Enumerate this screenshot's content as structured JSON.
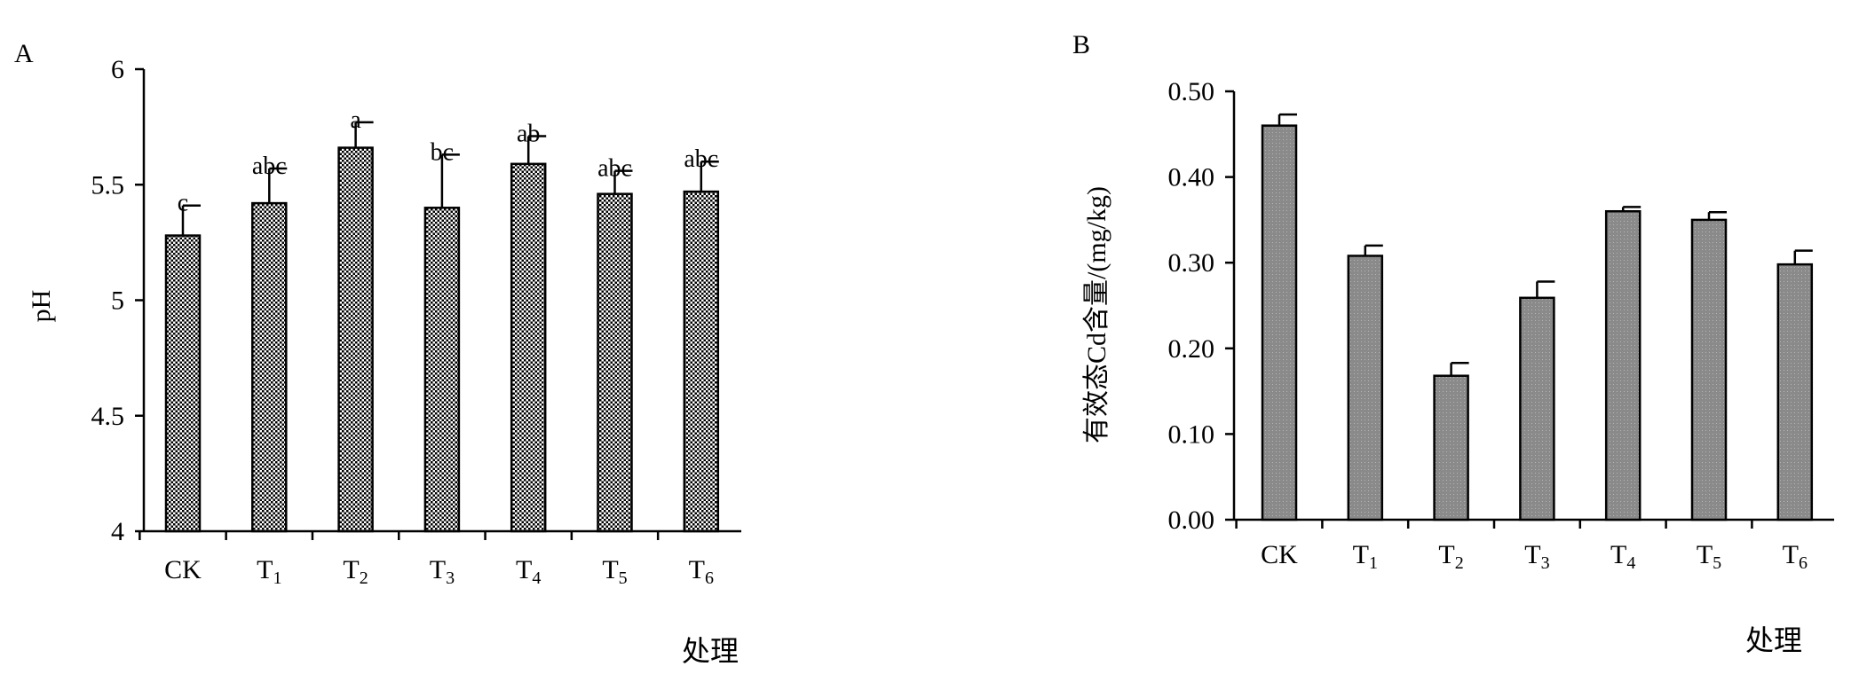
{
  "chart_data": [
    {
      "panel_label": "A",
      "type": "bar",
      "categories": [
        "CK",
        "T1",
        "T2",
        "T3",
        "T4",
        "T5",
        "T6"
      ],
      "category_labels": [
        {
          "base": "CK",
          "sub": ""
        },
        {
          "base": "T",
          "sub": "1"
        },
        {
          "base": "T",
          "sub": "2"
        },
        {
          "base": "T",
          "sub": "3"
        },
        {
          "base": "T",
          "sub": "4"
        },
        {
          "base": "T",
          "sub": "5"
        },
        {
          "base": "T",
          "sub": "6"
        }
      ],
      "values": [
        5.28,
        5.42,
        5.66,
        5.4,
        5.59,
        5.46,
        5.47
      ],
      "errors": [
        0.13,
        0.15,
        0.11,
        0.23,
        0.12,
        0.1,
        0.13
      ],
      "letters": [
        "c",
        "abc",
        "a",
        "bc",
        "ab",
        "abc",
        "abc"
      ],
      "xlabel": "处理",
      "ylabel": "pH",
      "ylim": [
        4,
        6
      ],
      "yticks": [
        4,
        4.5,
        5,
        5.5,
        6
      ],
      "ytick_labels": [
        "4",
        "4.5",
        "5",
        "5.5",
        "6"
      ],
      "bar_fill": "crosshatch",
      "grid": false
    },
    {
      "panel_label": "B",
      "type": "bar",
      "categories": [
        "CK",
        "T1",
        "T2",
        "T3",
        "T4",
        "T5",
        "T6"
      ],
      "category_labels": [
        {
          "base": "CK",
          "sub": ""
        },
        {
          "base": "T",
          "sub": "1"
        },
        {
          "base": "T",
          "sub": "2"
        },
        {
          "base": "T",
          "sub": "3"
        },
        {
          "base": "T",
          "sub": "4"
        },
        {
          "base": "T",
          "sub": "5"
        },
        {
          "base": "T",
          "sub": "6"
        }
      ],
      "values": [
        0.46,
        0.308,
        0.168,
        0.259,
        0.36,
        0.35,
        0.298
      ],
      "errors": [
        0.013,
        0.012,
        0.015,
        0.019,
        0.005,
        0.009,
        0.016
      ],
      "xlabel": "处理",
      "ylabel": "有效态Cd含量/(mg/kg)",
      "ylim": [
        0,
        0.5
      ],
      "yticks": [
        0,
        0.1,
        0.2,
        0.3,
        0.4,
        0.5
      ],
      "ytick_labels": [
        "0.00",
        "0.10",
        "0.20",
        "0.30",
        "0.40",
        "0.50"
      ],
      "bar_fill": "#8a8a8a",
      "grid": false
    }
  ]
}
